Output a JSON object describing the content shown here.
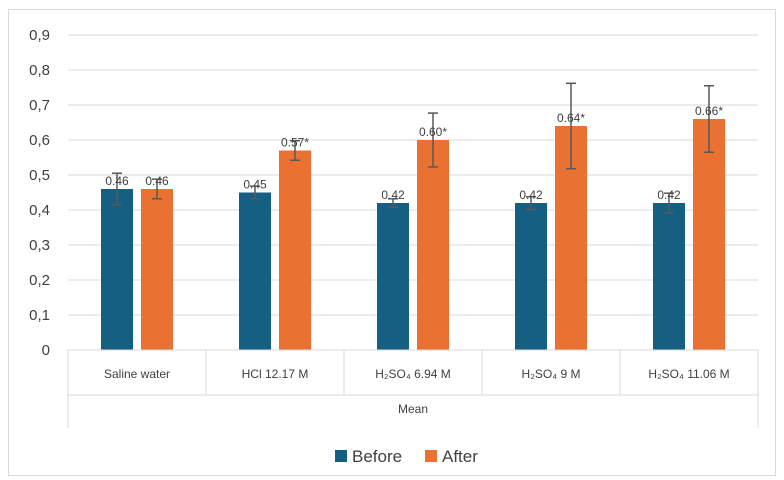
{
  "chart_data": {
    "type": "bar",
    "categories": [
      "Saline water",
      "HCl 12.17 M",
      "H₂SO₄ 6.94 M",
      "H₂SO₄ 9 M",
      "H₂SO₄ 11.06 M"
    ],
    "group_label": "Mean",
    "series": [
      {
        "name": "Before",
        "color": "#156082",
        "values": [
          0.46,
          0.45,
          0.42,
          0.42,
          0.42
        ],
        "labels": [
          "0.46",
          "0.45",
          "0.42",
          "0.42",
          "0.42"
        ],
        "error": [
          0.045,
          0.018,
          0.012,
          0.018,
          0.028
        ]
      },
      {
        "name": "After",
        "color": "#E97132",
        "values": [
          0.46,
          0.57,
          0.6,
          0.64,
          0.66
        ],
        "labels": [
          "0.46",
          "0.57*",
          "0.60*",
          "0.64*",
          "0.66*"
        ],
        "error": [
          0.028,
          0.028,
          0.077,
          0.122,
          0.095
        ]
      }
    ],
    "ylim": [
      0,
      0.9
    ],
    "yticks": [
      "0",
      "0,1",
      "0,2",
      "0,3",
      "0,4",
      "0,5",
      "0,6",
      "0,7",
      "0,8",
      "0,9"
    ],
    "grid": true,
    "legend": "bottom"
  }
}
